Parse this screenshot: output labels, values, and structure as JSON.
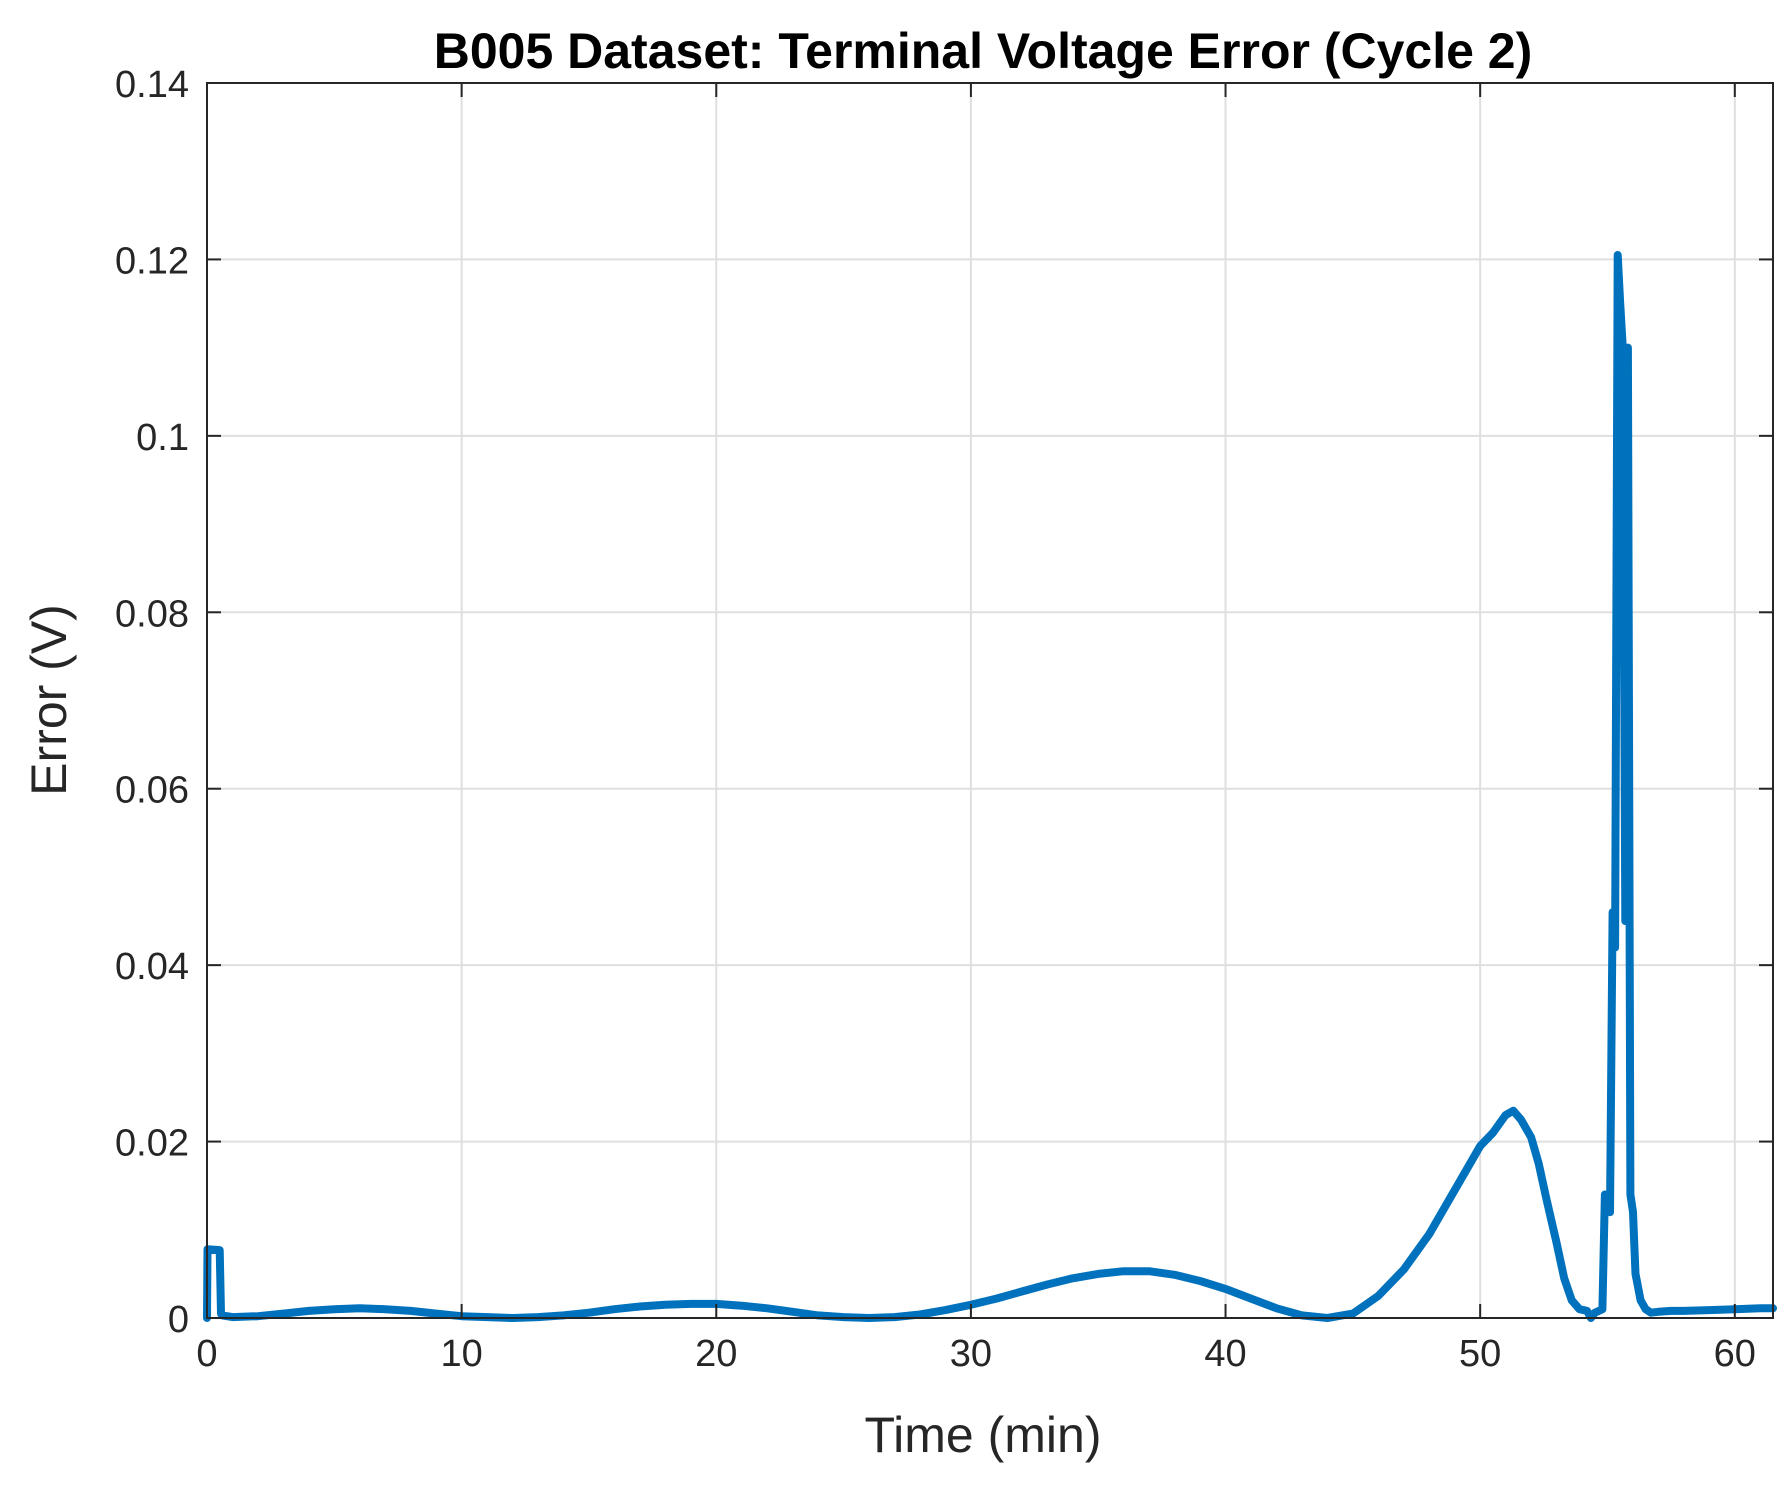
{
  "chart_data": {
    "type": "line",
    "title": "B005 Dataset: Terminal Voltage Error (Cycle 2)",
    "xlabel": "Time (min)",
    "ylabel": "Error (V)",
    "xlim": [
      0,
      61.5
    ],
    "ylim": [
      0,
      0.14
    ],
    "xticks": [
      "0",
      "10",
      "20",
      "30",
      "40",
      "50",
      "60"
    ],
    "yticks": [
      "0",
      "0.02",
      "0.04",
      "0.06",
      "0.08",
      "0.1",
      "0.12",
      "0.14"
    ],
    "grid": true,
    "legend": "none",
    "line_color": "#0072BD",
    "series": [
      {
        "x": [
          0,
          0.02,
          0.5,
          0.55,
          0.6,
          1,
          2,
          3,
          4,
          5,
          6,
          7,
          8,
          9,
          10,
          11,
          12,
          13,
          14,
          15,
          16,
          17,
          18,
          19,
          20,
          21,
          22,
          23,
          24,
          25,
          26,
          27,
          28,
          29,
          30,
          31,
          32,
          33,
          34,
          35,
          36,
          37,
          38,
          39,
          40,
          41,
          42,
          43,
          44,
          45,
          46,
          47,
          48,
          49,
          50,
          50.5,
          51,
          51.3,
          51.6,
          52,
          52.3,
          52.6,
          53,
          53.3,
          53.6,
          53.9,
          54.2,
          54.35,
          54.5,
          54.8,
          54.9,
          55.1,
          55.2,
          55.3,
          55.4,
          55.5,
          55.6,
          55.7,
          55.8,
          55.9,
          56,
          56.1,
          56.3,
          56.5,
          56.7,
          57,
          57.5,
          58,
          59,
          60,
          61,
          61.5
        ],
        "y": [
          0,
          0.0078,
          0.0077,
          0.0005,
          0.0003,
          0.0001,
          0.0002,
          0.0005,
          0.0008,
          0.001,
          0.0011,
          0.001,
          0.0008,
          0.0005,
          0.0002,
          0.0001,
          0.0,
          0.0001,
          0.0003,
          0.0006,
          0.001,
          0.0013,
          0.0015,
          0.0016,
          0.0016,
          0.0014,
          0.0011,
          0.0007,
          0.0003,
          0.0001,
          0.0,
          0.0001,
          0.0004,
          0.0009,
          0.0015,
          0.0022,
          0.003,
          0.0038,
          0.0045,
          0.005,
          0.0053,
          0.0053,
          0.0049,
          0.0042,
          0.0033,
          0.0022,
          0.0011,
          0.0003,
          0.0,
          0.0005,
          0.0025,
          0.0055,
          0.0095,
          0.0145,
          0.0195,
          0.021,
          0.023,
          0.0235,
          0.0225,
          0.0205,
          0.0175,
          0.0135,
          0.0085,
          0.0045,
          0.002,
          0.001,
          0.0008,
          0.0,
          0.0006,
          0.001,
          0.014,
          0.012,
          0.046,
          0.042,
          0.1205,
          0.115,
          0.11,
          0.045,
          0.11,
          0.014,
          0.012,
          0.005,
          0.002,
          0.001,
          0.0006,
          0.0007,
          0.0008,
          0.0008,
          0.0009,
          0.001,
          0.0011,
          0.0011
        ]
      }
    ]
  }
}
